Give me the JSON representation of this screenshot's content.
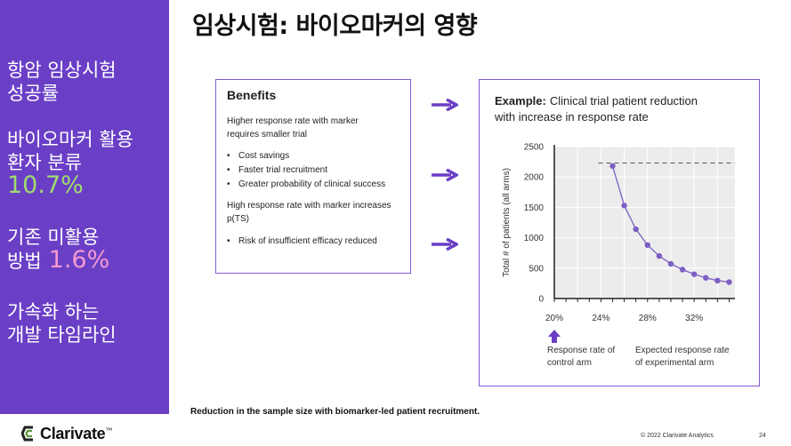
{
  "title": "임상시험: 바이오마커의 영향",
  "sidebar": {
    "stat1": {
      "line1": "항암 임상시험",
      "line2": "성공률"
    },
    "stat2": {
      "line1": "바이오마커 활용",
      "line2": "환자 분류",
      "value": "10.7%"
    },
    "stat3": {
      "line1": "기존 미활용",
      "line2": "방법",
      "value": "1.6%"
    },
    "stat4": {
      "line1": "가속화 하는",
      "line2": "개발 타임라인"
    }
  },
  "benefits": {
    "heading": "Benefits",
    "text1_l1": "Higher response rate with marker",
    "text1_l2": "requires smaller trial",
    "bullets1": [
      "Cost savings",
      "Faster trial recruitment",
      "Greater probability of clinical success"
    ],
    "text2_l1": "High response rate with marker increases",
    "text2_l2": "p(TS)",
    "bullets2": [
      "Risk of insufficient efficacy reduced"
    ]
  },
  "example": {
    "bold": "Example:",
    "title_rest": "Clinical trial patient reduction",
    "title_line2": "with increase in response rate",
    "ylabel": "Total # of patients (all arms)",
    "note_left_l1": "Response rate of",
    "note_left_l2": "control arm",
    "note_right_l1": "Expected response rate",
    "note_right_l2": "of experimental arm"
  },
  "chart_data": {
    "type": "line",
    "x": [
      25,
      26,
      27,
      28,
      29,
      30,
      31,
      32,
      33,
      34,
      35
    ],
    "values": [
      2180,
      1530,
      1140,
      880,
      700,
      570,
      475,
      400,
      340,
      295,
      270
    ],
    "x_ticks": [
      "20%",
      "24%",
      "28%",
      "32%"
    ],
    "x_tick_values": [
      20,
      24,
      28,
      32
    ],
    "y_ticks": [
      0,
      500,
      1000,
      1500,
      2000,
      2500
    ],
    "xlim": [
      20,
      35.5
    ],
    "ylim": [
      0,
      2500
    ],
    "reference_line": 2230,
    "ylabel": "Total # of patients (all arms)",
    "grid": true,
    "colors": {
      "line": "#7b5fc3",
      "area": "#ececec",
      "axis": "#222222"
    }
  },
  "caption": "Reduction in the sample size with biomarker-led patient recruitment.",
  "footer": {
    "copyright": "© 2022 Clarivate Analytics",
    "page": "24"
  },
  "logo": {
    "text": "Clarivate",
    "tm": "™"
  },
  "colors": {
    "sidebar": "#6a3fc6",
    "green_value": "#9fdc6f",
    "pink_value": "#f59ad0",
    "accent": "#7f5ad0"
  }
}
